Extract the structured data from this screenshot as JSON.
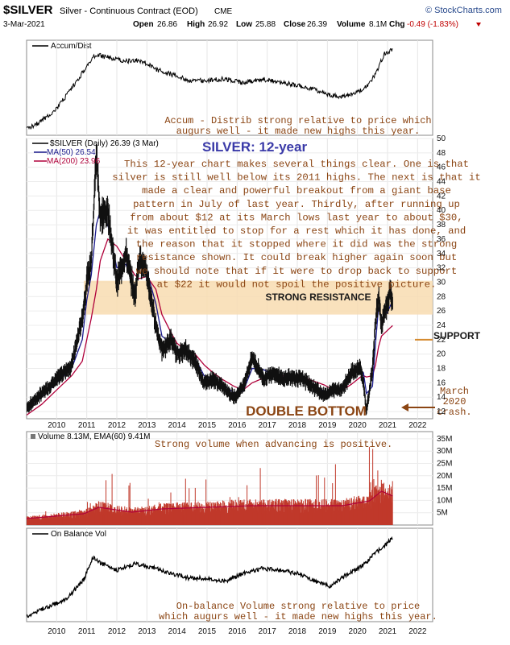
{
  "header": {
    "symbol": "$SILVER",
    "description": "Silver - Continuous Contract (EOD)",
    "exchange": "CME",
    "date": "3-Mar-2021",
    "open_label": "Open",
    "open": "26.86",
    "high_label": "High",
    "high": "26.92",
    "low_label": "Low",
    "low": "25.88",
    "close_label": "Close",
    "close": "26.39",
    "volume_label": "Volume",
    "volume": "8.1M",
    "chg_label": "Chg",
    "chg": "-0.49 (-1.83%)",
    "watermark": "© StockCharts.com"
  },
  "panels": {
    "accum": {
      "legend": "Accum/Dist",
      "note_line1": "Accum - Distrib strong relative to price which",
      "note_line2": "augurs well - it made new highs this year."
    },
    "price": {
      "legend_main": "$SILVER (Daily) 26.39 (3 Mar)",
      "legend_ma50": "MA(50) 26.54",
      "legend_ma200": "MA(200) 23.96",
      "title": "SILVER: 12-year",
      "commentary": [
        "This 12-year chart makes several things clear. One is that",
        "silver is still well below its 2011 highs. The next is that it",
        "made a clear and powerful breakout from a giant base",
        "pattern in July of last year. Thirdly, after running up",
        "from about $12 at its March lows last year to about $30,",
        "it was entitled to stop for a rest which it has done, and",
        "the reason that it stopped where it did was the strong",
        "resistance shown. It could break higher again soon but",
        "we should note that if it were to drop back to support",
        "at $22 it would not spoil the positive picture."
      ],
      "resistance_label": "STRONG RESISTANCE",
      "support_label": "SUPPORT",
      "double_bottom_label": "DOUBLE BOTTOM",
      "crash_line1": "March",
      "crash_line2": "2020",
      "crash_line3": "crash."
    },
    "volume": {
      "legend": "Volume 8.13M, EMA(60) 9.41M",
      "note": "Strong volume when advancing is positive."
    },
    "obv": {
      "legend": "On Balance Vol",
      "note_line1": "On-balance Volume strong relative to price",
      "note_line2": "which augurs well - it made new highs this year."
    }
  },
  "x_axis_labels": [
    "2010",
    "2011",
    "2012",
    "2013",
    "2014",
    "2015",
    "2016",
    "2017",
    "2018",
    "2019",
    "2020",
    "2021",
    "2022"
  ],
  "chart_data": {
    "type": "line",
    "title": "SILVER: 12-year",
    "x_unit": "year",
    "x": [
      2009.0,
      2009.5,
      2010.0,
      2010.5,
      2010.85,
      2011.0,
      2011.15,
      2011.32,
      2011.45,
      2011.7,
      2012.0,
      2012.3,
      2012.6,
      2012.75,
      2013.0,
      2013.3,
      2013.5,
      2013.8,
      2014.0,
      2014.3,
      2014.6,
      2014.9,
      2015.2,
      2015.5,
      2015.9,
      2016.2,
      2016.5,
      2016.9,
      2017.2,
      2017.5,
      2017.8,
      2018.2,
      2018.5,
      2018.9,
      2019.2,
      2019.5,
      2019.8,
      2020.1,
      2020.2,
      2020.3,
      2020.5,
      2020.6,
      2020.7,
      2020.8,
      2021.0,
      2021.1,
      2021.17
    ],
    "series": [
      {
        "name": "$SILVER",
        "values": [
          12.5,
          14.5,
          16.5,
          18.5,
          25.0,
          30.0,
          33.0,
          48.0,
          39.0,
          40.0,
          30.0,
          34.0,
          28.0,
          33.5,
          31.0,
          24.0,
          20.5,
          22.0,
          20.0,
          20.5,
          19.0,
          16.0,
          16.5,
          15.5,
          14.0,
          15.5,
          19.5,
          16.5,
          17.5,
          16.5,
          16.8,
          16.5,
          15.5,
          14.3,
          15.0,
          15.2,
          17.5,
          18.0,
          16.0,
          12.0,
          18.0,
          24.5,
          28.0,
          24.0,
          27.0,
          29.0,
          26.39
        ]
      },
      {
        "name": "MA(50)",
        "values": [
          12.0,
          14.0,
          16.0,
          18.0,
          22.0,
          27.5,
          31.0,
          38.0,
          40.0,
          38.0,
          32.0,
          32.5,
          29.0,
          32.0,
          31.5,
          27.0,
          22.5,
          21.5,
          20.8,
          20.0,
          19.5,
          17.0,
          16.4,
          15.8,
          14.6,
          14.8,
          18.0,
          17.8,
          17.0,
          16.8,
          16.7,
          16.6,
          15.9,
          14.8,
          14.9,
          15.1,
          17.0,
          17.8,
          17.4,
          14.5,
          15.5,
          21.5,
          26.5,
          25.0,
          25.8,
          26.8,
          26.54
        ]
      },
      {
        "name": "MA(200)",
        "values": [
          11.5,
          13.0,
          15.0,
          17.0,
          19.0,
          22.0,
          25.0,
          29.0,
          33.0,
          36.0,
          35.0,
          33.0,
          31.0,
          30.5,
          30.8,
          29.0,
          25.5,
          23.0,
          21.5,
          20.5,
          20.0,
          18.5,
          17.4,
          16.5,
          15.5,
          15.0,
          16.0,
          16.7,
          17.0,
          17.0,
          16.8,
          16.7,
          16.3,
          15.7,
          15.0,
          15.0,
          15.8,
          16.8,
          17.0,
          16.8,
          17.0,
          18.5,
          21.0,
          22.5,
          23.3,
          23.7,
          23.96
        ]
      }
    ],
    "price_axis": {
      "ylim": [
        11,
        50
      ],
      "ticks": [
        12,
        14,
        16,
        18,
        20,
        22,
        24,
        26,
        28,
        30,
        32,
        34,
        36,
        38,
        40,
        42,
        44,
        46,
        48,
        50
      ]
    },
    "resistance_zone": [
      25.5,
      30.2
    ],
    "support_level": 22,
    "volume_axis_ticks": [
      "5M",
      "10M",
      "15M",
      "20M",
      "25M",
      "30M",
      "35M"
    ]
  }
}
